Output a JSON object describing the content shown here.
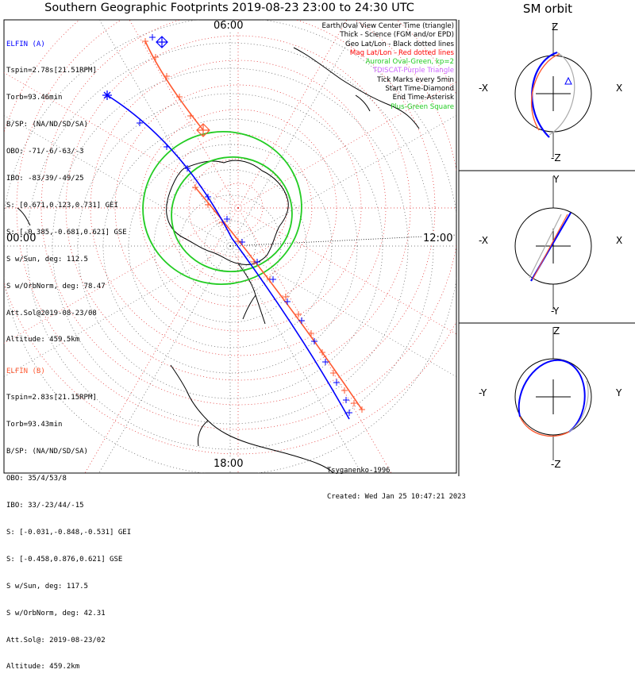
{
  "title": "Southern Geographic Footprints 2019-08-23 23:00 to 24:30 UTC",
  "sm_title": "SM orbit",
  "hours": {
    "top": "06:00",
    "left": "00:00",
    "right": "12:00",
    "bottom": "18:00"
  },
  "elfin_a": {
    "header": "ELFIN (A)",
    "lines": [
      "Tspin=2.78s[21.51RPM]",
      "Torb=93.46min",
      "B/SP: (NA/ND/SD/SA)",
      "OBO: -71/-6/-63/-3",
      "IBO: -83/39/-49/25",
      "S: [0.671,0.123,0.731] GEI",
      "S: [-0.385,-0.681,0.621] GSE",
      "S w/Sun, deg: 112.5",
      "S w/OrbNorm, deg: 78.47",
      "Att.Sol@2019-08-23/08",
      "Altitude: 459.5km"
    ],
    "color": "#0000ff"
  },
  "elfin_b": {
    "header": "ELFIN (B)",
    "lines": [
      "Tspin=2.83s[21.15RPM]",
      "Torb=93.43min",
      "B/SP: (NA/ND/SD/SA)",
      "OBO: 35/4/53/8",
      "IBO: 33/-23/44/-15",
      "S: [-0.031,-0.848,-0.531] GEI",
      "S: [-0.458,0.876,0.621] GSE",
      "S w/Sun, deg: 117.5",
      "S w/OrbNorm, deg: 42.31",
      "Att.Sol@: 2019-08-23/02",
      "Altitude: 459.2km"
    ],
    "color": "#ff5a32"
  },
  "legend": [
    {
      "text": "Earth/Oval View Center Time (triangle)",
      "color": "#000000"
    },
    {
      "text": "Thick - Science (FGM and/or EPD)",
      "color": "#000000"
    },
    {
      "text": "Geo Lat/Lon - Black dotted lines",
      "color": "#000000"
    },
    {
      "text": "Mag Lat/Lon - Red dotted lines",
      "color": "#ff0000"
    },
    {
      "text": "Auroral Oval-Green, kp=2",
      "color": "#22cc22"
    },
    {
      "text": "TDISCAT-Purple Triangle",
      "color": "#cc66ff"
    },
    {
      "text": "Tick Marks every 5min",
      "color": "#000000"
    },
    {
      "text": "Start Time-Diamond",
      "color": "#000000"
    },
    {
      "text": "End Time-Asterisk",
      "color": "#000000"
    },
    {
      "text": "Plus-Green Square",
      "color": "#22cc22"
    }
  ],
  "credit": [
    "Tsyganenko-1996",
    "Created: Wed Jan 25 10:47:21 2023"
  ],
  "panels": [
    {
      "top": "Z",
      "bottom": "-Z",
      "left": "-X",
      "right": "X"
    },
    {
      "top": "Y",
      "bottom": "-Y",
      "left": "-X",
      "right": "X"
    },
    {
      "top": "Z",
      "bottom": "-Z",
      "left": "-Y",
      "right": "Y"
    }
  ],
  "chart_data": {
    "type": "scatter",
    "projection": "south polar",
    "series": [
      {
        "name": "ELFIN (A)",
        "color": "#0000ff"
      },
      {
        "name": "ELFIN (B)",
        "color": "#ff5a32"
      }
    ],
    "tick_interval": "5min",
    "kp": 2
  }
}
